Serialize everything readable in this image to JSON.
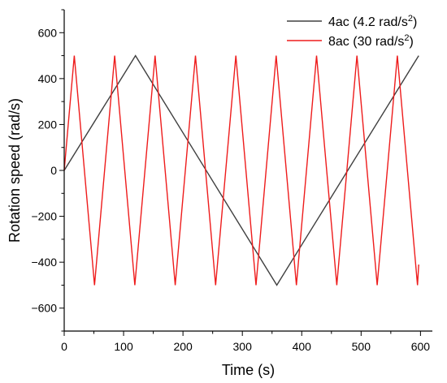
{
  "chart_data": {
    "type": "line",
    "xlabel": "Time (s)",
    "ylabel": "Rotation speed (rad/s)",
    "xlim": [
      0,
      620
    ],
    "ylim": [
      -700,
      700
    ],
    "x_ticks": [
      0,
      100,
      200,
      300,
      400,
      500,
      600
    ],
    "y_ticks": [
      -600,
      -400,
      -200,
      0,
      200,
      400,
      600
    ],
    "grid": false,
    "legend_position": "top-right",
    "series": [
      {
        "legend_label": "4ac (4.2 rad/s",
        "legend_exponent": "2",
        "legend_suffix": ")",
        "color": "#404040",
        "x": [
          0,
          120,
          358,
          597
        ],
        "y": [
          0,
          500,
          -500,
          500
        ]
      },
      {
        "legend_label": "8ac (30 rad/s",
        "legend_exponent": "2",
        "legend_suffix": ")",
        "color": "#ee1c1c",
        "x": [
          0,
          17,
          51,
          85,
          119,
          153,
          187,
          221,
          255,
          289,
          323,
          357,
          391,
          425,
          459,
          493,
          527,
          561,
          595,
          597
        ],
        "y": [
          0,
          500,
          -500,
          500,
          -500,
          500,
          -500,
          500,
          -500,
          500,
          -500,
          500,
          -500,
          500,
          -500,
          500,
          -500,
          500,
          -500,
          -410
        ]
      }
    ]
  }
}
